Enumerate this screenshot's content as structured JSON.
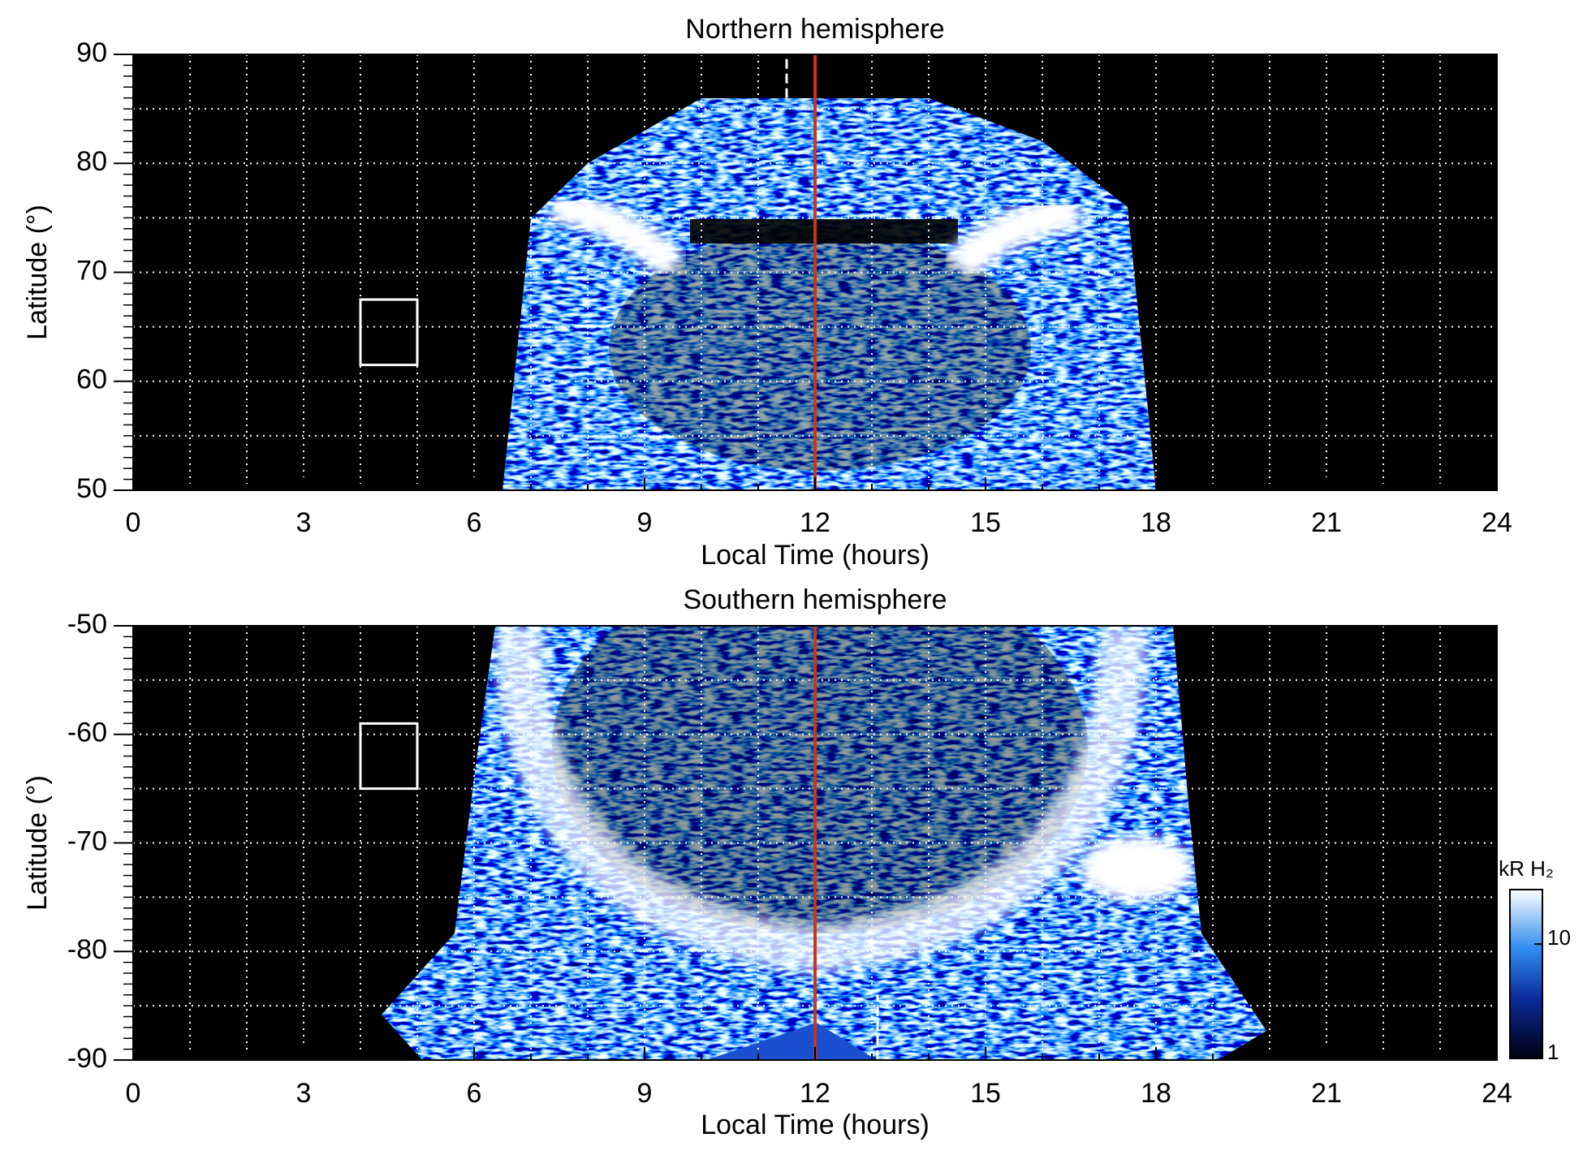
{
  "chart_data": [
    {
      "type": "heatmap",
      "title": "Northern hemisphere",
      "xlabel": "Local Time (hours)",
      "ylabel": "Latitude (°)",
      "xlim": [
        0,
        24
      ],
      "xticks": [
        0,
        3,
        6,
        9,
        12,
        15,
        18,
        21,
        24
      ],
      "ylim": [
        50,
        90
      ],
      "yticks": [
        50,
        60,
        70,
        80,
        90
      ],
      "xgrid": [
        1,
        2,
        3,
        4,
        5,
        6,
        7,
        8,
        9,
        10,
        11,
        12,
        13,
        14,
        15,
        16,
        17,
        18,
        19,
        20,
        21,
        22,
        23
      ],
      "ygrid": [
        55,
        60,
        65,
        70,
        75,
        80,
        85
      ],
      "red_line": 12,
      "red_color": "#c8361a",
      "dashed_line": {
        "x": 11.5,
        "y": [
          86,
          90
        ]
      },
      "box": {
        "x": [
          4,
          5
        ],
        "y": [
          61.5,
          67.5
        ]
      }
    },
    {
      "type": "heatmap",
      "title": "Southern hemisphere",
      "xlabel": "Local Time (hours)",
      "ylabel": "Latitude (°)",
      "xlim": [
        0,
        24
      ],
      "xticks": [
        0,
        3,
        6,
        9,
        12,
        15,
        18,
        21,
        24
      ],
      "ylim": [
        -90,
        -50
      ],
      "yticks": [
        -90,
        -80,
        -70,
        -60,
        -50
      ],
      "xgrid": [
        1,
        2,
        3,
        4,
        5,
        6,
        7,
        8,
        9,
        10,
        11,
        12,
        13,
        14,
        15,
        16,
        17,
        18,
        19,
        20,
        21,
        22,
        23
      ],
      "ygrid": [
        -85,
        -80,
        -75,
        -70,
        -65,
        -60,
        -55
      ],
      "red_line": 12,
      "red_color": "#c8361a",
      "dashed_line": {
        "x": 13.1,
        "y": [
          -90,
          -84
        ]
      },
      "box": {
        "x": [
          4,
          5
        ],
        "y": [
          -65,
          -59
        ]
      },
      "colorbar": {
        "label": "kR H₂",
        "lim": [
          1,
          30
        ],
        "ticks": [
          1,
          10
        ],
        "log": true
      }
    }
  ]
}
